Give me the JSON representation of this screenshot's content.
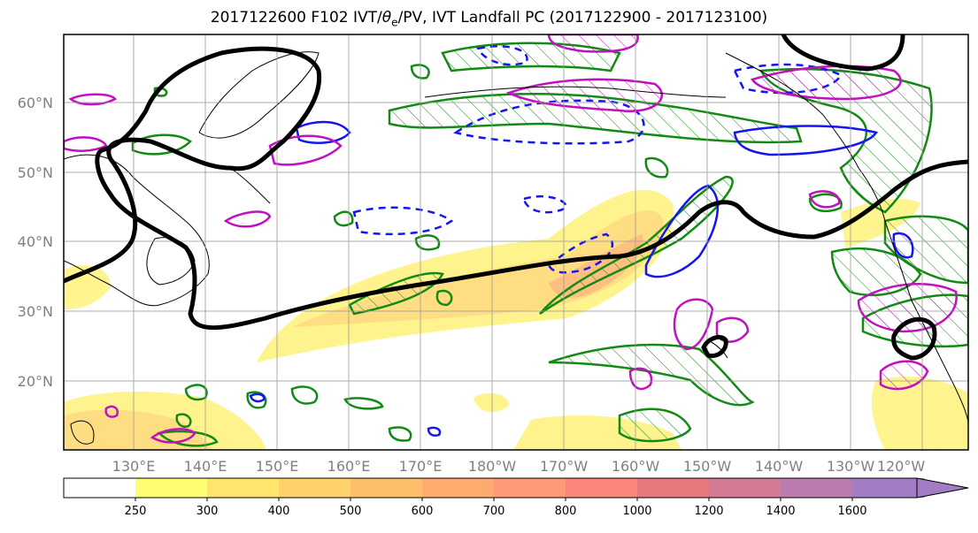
{
  "title_prefix": "2017122600 F102 IVT/",
  "title_theta": "θ",
  "title_sub": "e",
  "title_suffix": "/PV, IVT Landfall PC (2017122900 - 2017123100)",
  "lat_labels": [
    "60°N",
    "50°N",
    "40°N",
    "30°N",
    "20°N"
  ],
  "lon_labels": [
    "130°E",
    "140°E",
    "150°E",
    "160°E",
    "170°E",
    "180°W",
    "170°W",
    "160°W",
    "150°W",
    "140°W",
    "130°W",
    "120°W"
  ],
  "colorbar": {
    "levels": [
      "250",
      "300",
      "400",
      "500",
      "600",
      "700",
      "800",
      "1000",
      "1200",
      "1400",
      "1600"
    ],
    "colors": [
      "#ffffff",
      "#fffe73",
      "#ffe56d",
      "#ffd168",
      "#ffbe6a",
      "#ffab70",
      "#ff9876",
      "#fb8579",
      "#e9787d",
      "#d57a95",
      "#bb7bae",
      "#a27cc4"
    ]
  },
  "series_colors": {
    "ivt_fill": "#ffd86a",
    "pv_contour": "#000000",
    "green_contour": "#138a13",
    "blue_contour": "#1515f0",
    "magenta_contour": "#c010c0"
  }
}
